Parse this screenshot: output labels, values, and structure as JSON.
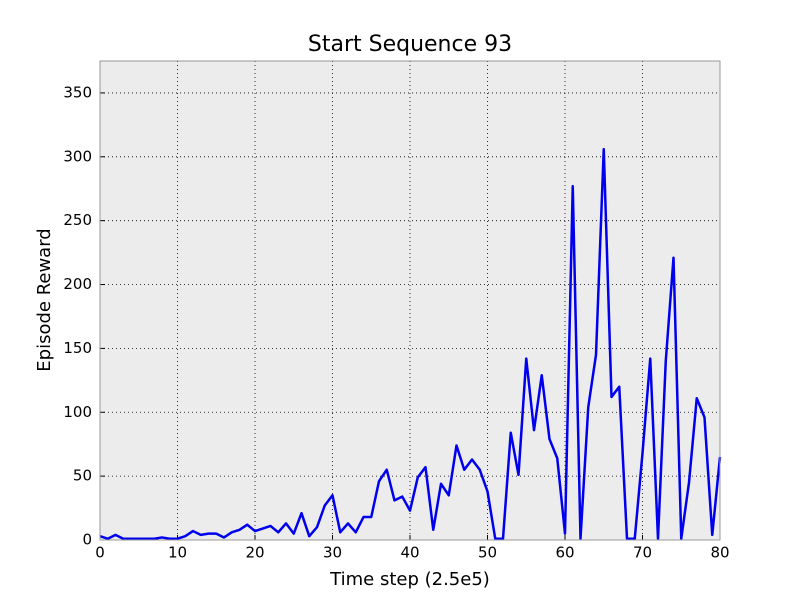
{
  "chart_data": {
    "type": "line",
    "title": "Start Sequence 93",
    "x_label": "Time step (2.5e5)",
    "y_label": "Episode Reward",
    "x": [
      0,
      1,
      2,
      3,
      4,
      5,
      6,
      7,
      8,
      9,
      10,
      11,
      12,
      13,
      14,
      15,
      16,
      17,
      18,
      19,
      20,
      21,
      22,
      23,
      24,
      25,
      26,
      27,
      28,
      29,
      30,
      31,
      32,
      33,
      34,
      35,
      36,
      37,
      38,
      39,
      40,
      41,
      42,
      43,
      44,
      45,
      46,
      47,
      48,
      49,
      50,
      51,
      52,
      53,
      54,
      55,
      56,
      57,
      58,
      59,
      60,
      61,
      62,
      63,
      64,
      65,
      66,
      67,
      68,
      69,
      70,
      71,
      72,
      73,
      74,
      75,
      76,
      77,
      78,
      79,
      80
    ],
    "series": [
      {
        "color": "#0000ee",
        "values": [
          3,
          1,
          4,
          1,
          1,
          1,
          1,
          1,
          2,
          1,
          1,
          3,
          7,
          4,
          5,
          5,
          2,
          6,
          8,
          12,
          7,
          9,
          11,
          6,
          13,
          5,
          21,
          3,
          10,
          27,
          35,
          6,
          13,
          6,
          18,
          18,
          46,
          55,
          31,
          34,
          23,
          49,
          57,
          8,
          44,
          35,
          74,
          55,
          63,
          55,
          38,
          1,
          1,
          84,
          51,
          142,
          86,
          129,
          79,
          64,
          5,
          277,
          1,
          104,
          145,
          306,
          112,
          120,
          1,
          1,
          68,
          142,
          1,
          140,
          221,
          1,
          45,
          111,
          96,
          4,
          65
        ]
      }
    ],
    "xlim": [
      0,
      80
    ],
    "xticks": [
      0,
      10,
      20,
      30,
      40,
      50,
      60,
      70,
      80
    ],
    "ylim": [
      0,
      375
    ],
    "yticks": [
      0,
      50,
      100,
      150,
      200,
      250,
      300,
      350
    ],
    "grid": true
  }
}
